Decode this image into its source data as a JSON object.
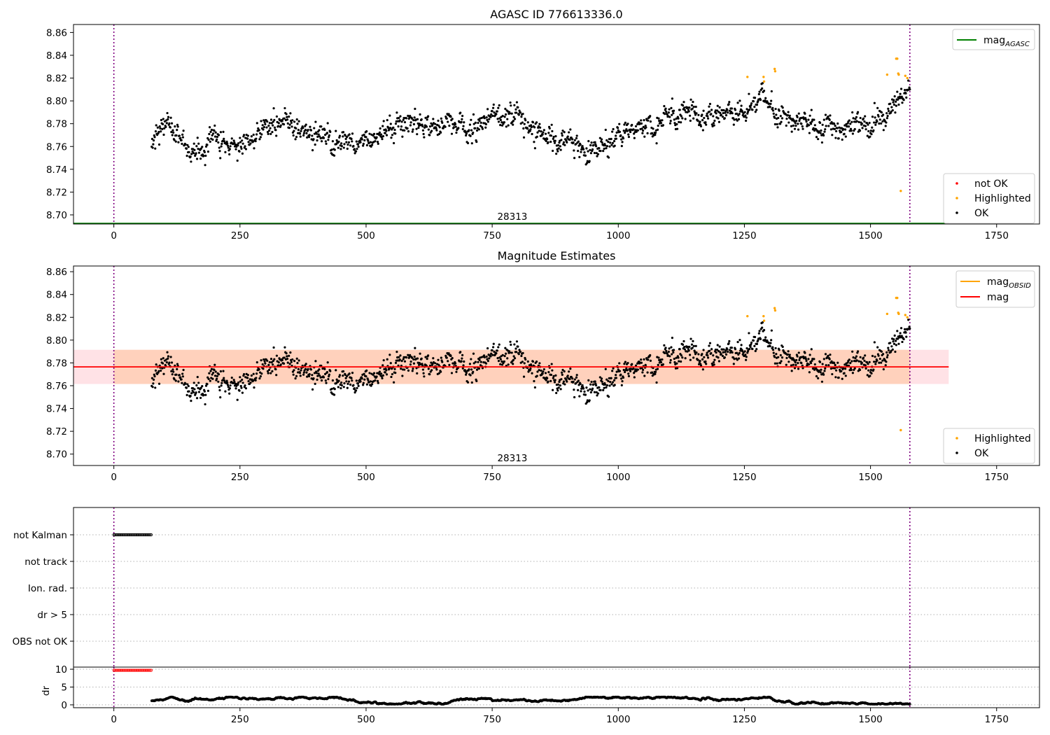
{
  "chart_data": [
    {
      "type": "scatter",
      "title": "AGASC ID 776613336.0",
      "xlabel": "",
      "ylabel": "",
      "xlim": [
        -80,
        1835
      ],
      "ylim": [
        8.692,
        8.867
      ],
      "x_ticks": [
        0,
        250,
        500,
        750,
        1000,
        1250,
        1500,
        1750
      ],
      "y_ticks": [
        8.7,
        8.72,
        8.74,
        8.76,
        8.78,
        8.8,
        8.82,
        8.84,
        8.86
      ],
      "vlines": [
        0,
        1578
      ],
      "obsid_label": {
        "x": 790,
        "y": 8.697,
        "text": "28313"
      },
      "hlines": [
        {
          "name": "mag_AGASC",
          "label_main": "mag",
          "label_sub": "AGASC",
          "y": 8.6925,
          "x_range": [
            -80,
            1655
          ],
          "color": "#008000"
        }
      ],
      "series": [
        {
          "name": "not OK",
          "color": "#ff0000",
          "values": []
        },
        {
          "name": "Highlighted",
          "color": "#ffa500",
          "values": [
            [
              1256,
              8.821
            ],
            [
              1288,
              8.821
            ],
            [
              1289,
              8.817
            ],
            [
              1310,
              8.828
            ],
            [
              1311,
              8.826
            ],
            [
              1551,
              8.837
            ],
            [
              1553,
              8.837
            ],
            [
              1555,
              8.824
            ],
            [
              1556,
              8.823
            ],
            [
              1560,
              8.721
            ],
            [
              1533,
              8.823
            ],
            [
              1569,
              8.822
            ],
            [
              1573,
              8.82
            ]
          ]
        },
        {
          "name": "OK",
          "color": "#000000",
          "values": []
        }
      ],
      "ok_trend": [
        [
          75,
          8.762
        ],
        [
          100,
          8.775
        ],
        [
          130,
          8.768
        ],
        [
          160,
          8.753
        ],
        [
          200,
          8.768
        ],
        [
          240,
          8.758
        ],
        [
          275,
          8.768
        ],
        [
          300,
          8.778
        ],
        [
          360,
          8.78
        ],
        [
          400,
          8.768
        ],
        [
          450,
          8.762
        ],
        [
          500,
          8.765
        ],
        [
          540,
          8.77
        ],
        [
          570,
          8.777
        ],
        [
          600,
          8.78
        ],
        [
          640,
          8.782
        ],
        [
          680,
          8.782
        ],
        [
          720,
          8.776
        ],
        [
          760,
          8.787
        ],
        [
          800,
          8.787
        ],
        [
          830,
          8.774
        ],
        [
          870,
          8.766
        ],
        [
          920,
          8.756
        ],
        [
          960,
          8.761
        ],
        [
          1000,
          8.768
        ],
        [
          1040,
          8.779
        ],
        [
          1080,
          8.781
        ],
        [
          1110,
          8.788
        ],
        [
          1160,
          8.789
        ],
        [
          1200,
          8.794
        ],
        [
          1250,
          8.795
        ],
        [
          1290,
          8.802
        ],
        [
          1320,
          8.791
        ],
        [
          1350,
          8.78
        ],
        [
          1400,
          8.775
        ],
        [
          1440,
          8.775
        ],
        [
          1480,
          8.776
        ],
        [
          1510,
          8.783
        ],
        [
          1540,
          8.796
        ],
        [
          1560,
          8.807
        ],
        [
          1578,
          8.813
        ]
      ],
      "legend_lines": "top-right",
      "legend_points": "bottom-right",
      "grid": false
    },
    {
      "type": "scatter",
      "title": "Magnitude Estimates",
      "xlabel": "",
      "ylabel": "",
      "xlim": [
        -80,
        1835
      ],
      "ylim": [
        8.69,
        8.865
      ],
      "x_ticks": [
        0,
        250,
        500,
        750,
        1000,
        1250,
        1500,
        1750
      ],
      "y_ticks": [
        8.7,
        8.72,
        8.74,
        8.76,
        8.78,
        8.8,
        8.82,
        8.84,
        8.86
      ],
      "vlines": [
        0,
        1578
      ],
      "obsid_label": {
        "x": 790,
        "y": 8.695,
        "text": "28313"
      },
      "hlines": [
        {
          "name": "mag_OBSID",
          "label_main": "mag",
          "label_sub": "OBSID",
          "y": 8.7765,
          "x_range": [
            -80,
            1655
          ],
          "color": "#ffa500",
          "band": [
            8.7615,
            8.7915
          ]
        },
        {
          "name": "mag",
          "label_main": "mag",
          "label_sub": "",
          "y": 8.7765,
          "x_range": [
            -80,
            1655
          ],
          "color": "#ff0000",
          "band": [
            8.7615,
            8.7915
          ]
        }
      ],
      "series": [
        {
          "name": "Highlighted",
          "color": "#ffa500",
          "values": "same as upper panel"
        },
        {
          "name": "OK",
          "color": "#000000",
          "values": "same as upper panel"
        }
      ],
      "legend_lines": "top-right",
      "legend_points": "bottom-right",
      "grid": false
    },
    {
      "type": "scatter",
      "title": "",
      "xlabel": "",
      "ylabel": "",
      "xlim": [
        -80,
        1835
      ],
      "categories": [
        "not Kalman",
        "not track",
        "Ion. rad.",
        "dr > 5",
        "OBS not OK"
      ],
      "flags": [
        {
          "category": "not Kalman",
          "x_range": [
            0,
            74
          ],
          "color": "#000000"
        }
      ],
      "vlines": [
        0,
        1578
      ],
      "grid": true
    },
    {
      "type": "scatter",
      "title": "",
      "xlabel": "",
      "ylabel": "dr",
      "xlim": [
        -80,
        1835
      ],
      "ylim": [
        -0.8,
        10.6
      ],
      "y_ticks": [
        0,
        5,
        10
      ],
      "x_ticks": [
        0,
        250,
        500,
        750,
        1000,
        1250,
        1500,
        1750
      ],
      "flat_segment": {
        "x_range": [
          0,
          74
        ],
        "y": 9.7,
        "color": "#ff0000"
      },
      "dr_range": [
        75,
        1578
      ],
      "dr_typical": [
        0.2,
        2.2
      ],
      "vlines": [
        0,
        1578
      ],
      "grid": true
    }
  ]
}
